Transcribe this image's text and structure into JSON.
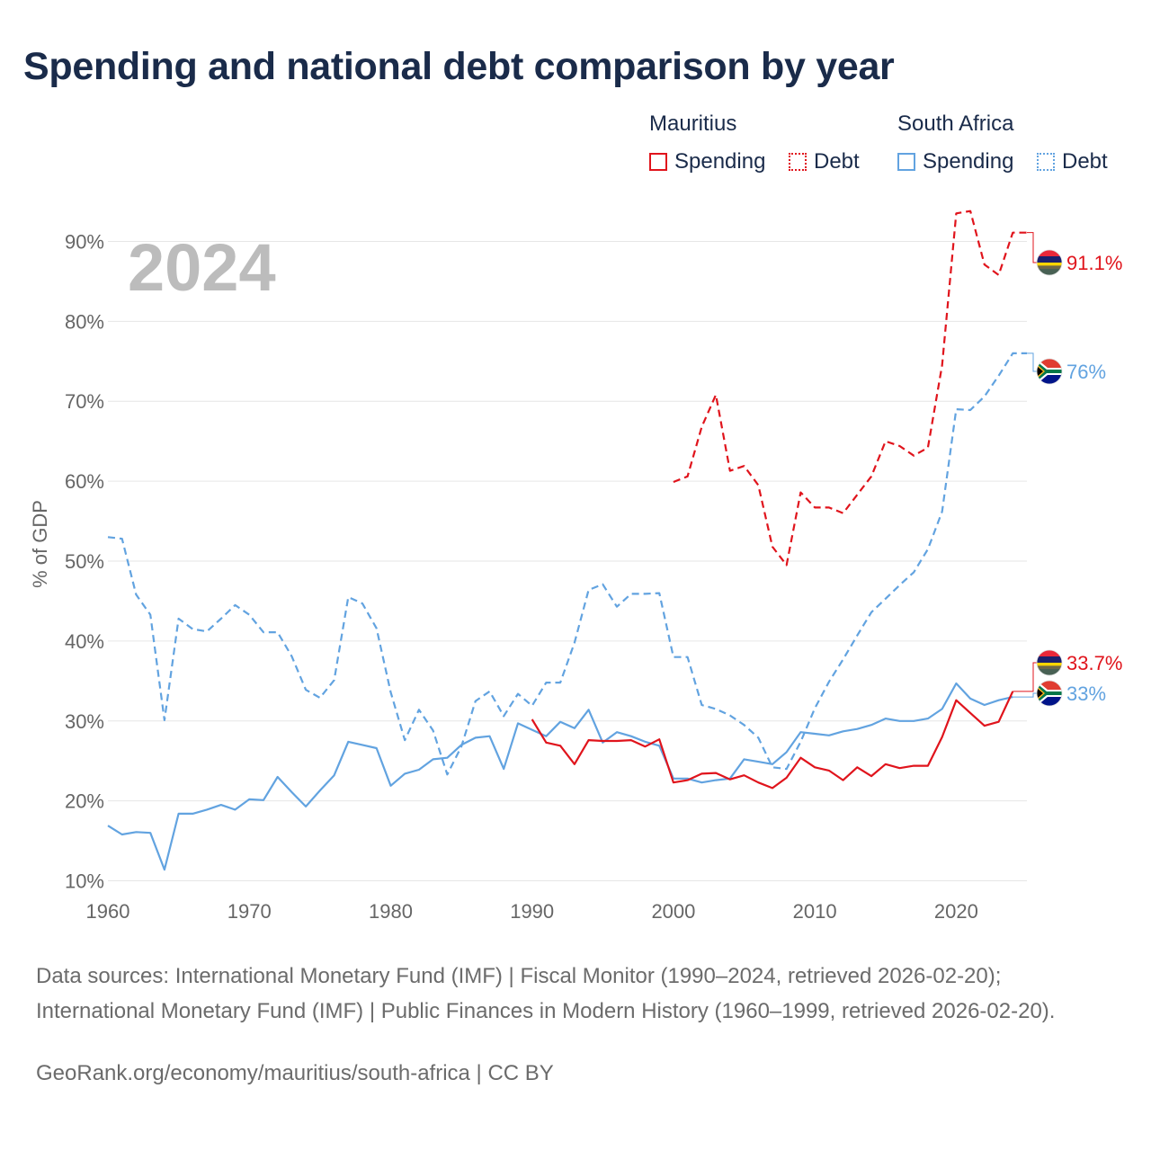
{
  "title": "Spending and national debt comparison by year",
  "legend": {
    "mauritius": {
      "name": "Mauritius",
      "spending": "Spending",
      "debt": "Debt"
    },
    "south_africa": {
      "name": "South Africa",
      "spending": "Spending",
      "debt": "Debt"
    }
  },
  "colors": {
    "mauritius": "#e0141c",
    "south_africa": "#62a3e0",
    "grid": "#e6e6e6",
    "axis_text": "#666666",
    "year_watermark": "#bcbcbc"
  },
  "footer": {
    "sources": "Data sources: International Monetary Fund (IMF) | Fiscal Monitor (1990–2024, retrieved 2026-02-20); International Monetary Fund (IMF) | Public Finances in Modern History (1960–1999, retrieved 2026-02-20).",
    "credit": "GeoRank.org/economy/mauritius/south-africa | CC BY"
  },
  "chart_data": {
    "type": "line",
    "year_label": "2024",
    "ylabel": "% of GDP",
    "xlim": [
      1960,
      2025
    ],
    "ylim": [
      5,
      95
    ],
    "xticks": [
      1960,
      1970,
      1980,
      1990,
      2000,
      2010,
      2020
    ],
    "yticks": [
      10,
      20,
      30,
      40,
      50,
      60,
      70,
      80,
      90
    ],
    "ytick_labels": [
      "10%",
      "20%",
      "30%",
      "40%",
      "50%",
      "60%",
      "70%",
      "80%",
      "90%"
    ],
    "end_labels": [
      {
        "series": "mu_debt",
        "text": "91.1%",
        "flag": "mauritius-flag"
      },
      {
        "series": "sa_debt",
        "text": "76%",
        "flag": "south-africa-flag"
      },
      {
        "series": "mu_spending",
        "text": "33.7%",
        "flag": "mauritius-flag"
      },
      {
        "series": "sa_spending",
        "text": "33%",
        "flag": "south-africa-flag"
      }
    ],
    "series": [
      {
        "key": "sa_debt",
        "country": "South Africa",
        "measure": "Debt",
        "color": "#62a3e0",
        "style": "dashed",
        "points": [
          [
            1960,
            53.0
          ],
          [
            1961,
            52.8
          ],
          [
            1962,
            45.8
          ],
          [
            1963,
            43.3
          ],
          [
            1964,
            30.1
          ],
          [
            1965,
            42.8
          ],
          [
            1966,
            41.5
          ],
          [
            1967,
            41.2
          ],
          [
            1968,
            42.8
          ],
          [
            1969,
            44.5
          ],
          [
            1970,
            43.3
          ],
          [
            1971,
            41.1
          ],
          [
            1972,
            41.1
          ],
          [
            1973,
            38.1
          ],
          [
            1974,
            33.9
          ],
          [
            1975,
            32.9
          ],
          [
            1976,
            35.1
          ],
          [
            1977,
            45.5
          ],
          [
            1978,
            44.7
          ],
          [
            1979,
            41.6
          ],
          [
            1980,
            33.6
          ],
          [
            1981,
            27.6
          ],
          [
            1982,
            31.4
          ],
          [
            1983,
            28.8
          ],
          [
            1984,
            23.3
          ],
          [
            1985,
            26.8
          ],
          [
            1986,
            32.5
          ],
          [
            1987,
            33.7
          ],
          [
            1988,
            30.6
          ],
          [
            1989,
            33.4
          ],
          [
            1990,
            31.9
          ],
          [
            1991,
            34.8
          ],
          [
            1992,
            34.8
          ],
          [
            1993,
            39.8
          ],
          [
            1994,
            46.4
          ],
          [
            1995,
            47.1
          ],
          [
            1996,
            44.3
          ],
          [
            1997,
            45.9
          ],
          [
            1998,
            45.9
          ],
          [
            1999,
            46.0
          ],
          [
            2000,
            38.0
          ],
          [
            2001,
            38.0
          ],
          [
            2002,
            32.0
          ],
          [
            2003,
            31.5
          ],
          [
            2004,
            30.7
          ],
          [
            2005,
            29.5
          ],
          [
            2006,
            27.9
          ],
          [
            2007,
            24.2
          ],
          [
            2008,
            24.0
          ],
          [
            2009,
            27.4
          ],
          [
            2010,
            31.6
          ],
          [
            2011,
            34.9
          ],
          [
            2012,
            37.7
          ],
          [
            2013,
            40.7
          ],
          [
            2014,
            43.6
          ],
          [
            2015,
            45.3
          ],
          [
            2016,
            47.0
          ],
          [
            2017,
            48.6
          ],
          [
            2018,
            51.5
          ],
          [
            2019,
            56.2
          ],
          [
            2020,
            69.0
          ],
          [
            2021,
            68.9
          ],
          [
            2022,
            70.6
          ],
          [
            2023,
            73.2
          ],
          [
            2024,
            76.0
          ],
          [
            2025,
            76.0
          ]
        ]
      },
      {
        "key": "mu_debt",
        "country": "Mauritius",
        "measure": "Debt",
        "color": "#e0141c",
        "style": "dashed",
        "points": [
          [
            2000,
            59.9
          ],
          [
            2001,
            60.6
          ],
          [
            2002,
            66.8
          ],
          [
            2003,
            70.8
          ],
          [
            2004,
            61.3
          ],
          [
            2005,
            61.9
          ],
          [
            2006,
            59.5
          ],
          [
            2007,
            51.8
          ],
          [
            2008,
            49.5
          ],
          [
            2009,
            58.6
          ],
          [
            2010,
            56.7
          ],
          [
            2011,
            56.7
          ],
          [
            2012,
            56.0
          ],
          [
            2013,
            58.3
          ],
          [
            2014,
            60.6
          ],
          [
            2015,
            65.0
          ],
          [
            2016,
            64.4
          ],
          [
            2017,
            63.2
          ],
          [
            2018,
            64.2
          ],
          [
            2019,
            74.5
          ],
          [
            2020,
            93.5
          ],
          [
            2021,
            93.8
          ],
          [
            2022,
            87.1
          ],
          [
            2023,
            85.8
          ],
          [
            2024,
            91.1
          ],
          [
            2025,
            91.1
          ]
        ]
      },
      {
        "key": "sa_spending",
        "country": "South Africa",
        "measure": "Spending",
        "color": "#62a3e0",
        "style": "solid",
        "points": [
          [
            1960,
            16.9
          ],
          [
            1961,
            15.8
          ],
          [
            1962,
            16.1
          ],
          [
            1963,
            16.0
          ],
          [
            1964,
            11.4
          ],
          [
            1965,
            18.4
          ],
          [
            1966,
            18.4
          ],
          [
            1967,
            18.9
          ],
          [
            1968,
            19.5
          ],
          [
            1969,
            18.9
          ],
          [
            1970,
            20.2
          ],
          [
            1971,
            20.1
          ],
          [
            1972,
            23.0
          ],
          [
            1973,
            21.1
          ],
          [
            1974,
            19.3
          ],
          [
            1975,
            21.3
          ],
          [
            1976,
            23.2
          ],
          [
            1977,
            27.4
          ],
          [
            1978,
            27.0
          ],
          [
            1979,
            26.6
          ],
          [
            1980,
            21.9
          ],
          [
            1981,
            23.4
          ],
          [
            1982,
            23.9
          ],
          [
            1983,
            25.2
          ],
          [
            1984,
            25.4
          ],
          [
            1985,
            27.0
          ],
          [
            1986,
            27.9
          ],
          [
            1987,
            28.1
          ],
          [
            1988,
            24.0
          ],
          [
            1989,
            29.7
          ],
          [
            1990,
            28.9
          ],
          [
            1991,
            28.1
          ],
          [
            1992,
            29.9
          ],
          [
            1993,
            29.1
          ],
          [
            1994,
            31.4
          ],
          [
            1995,
            27.3
          ],
          [
            1996,
            28.6
          ],
          [
            1997,
            28.1
          ],
          [
            1998,
            27.4
          ],
          [
            1999,
            26.9
          ],
          [
            2000,
            22.8
          ],
          [
            2001,
            22.8
          ],
          [
            2002,
            22.3
          ],
          [
            2003,
            22.6
          ],
          [
            2004,
            22.8
          ],
          [
            2005,
            25.2
          ],
          [
            2006,
            24.9
          ],
          [
            2007,
            24.6
          ],
          [
            2008,
            26.1
          ],
          [
            2009,
            28.6
          ],
          [
            2010,
            28.4
          ],
          [
            2011,
            28.2
          ],
          [
            2012,
            28.7
          ],
          [
            2013,
            29.0
          ],
          [
            2014,
            29.5
          ],
          [
            2015,
            30.3
          ],
          [
            2016,
            30.0
          ],
          [
            2017,
            30.0
          ],
          [
            2018,
            30.3
          ],
          [
            2019,
            31.5
          ],
          [
            2020,
            34.7
          ],
          [
            2021,
            32.8
          ],
          [
            2022,
            32.0
          ],
          [
            2023,
            32.6
          ],
          [
            2024,
            33.0
          ]
        ]
      },
      {
        "key": "mu_spending",
        "country": "Mauritius",
        "measure": "Spending",
        "color": "#e0141c",
        "style": "solid",
        "points": [
          [
            1990,
            30.2
          ],
          [
            1991,
            27.3
          ],
          [
            1992,
            26.9
          ],
          [
            1993,
            24.6
          ],
          [
            1994,
            27.6
          ],
          [
            1995,
            27.5
          ],
          [
            1996,
            27.5
          ],
          [
            1997,
            27.6
          ],
          [
            1998,
            26.8
          ],
          [
            1999,
            27.7
          ],
          [
            2000,
            22.3
          ],
          [
            2001,
            22.6
          ],
          [
            2002,
            23.4
          ],
          [
            2003,
            23.5
          ],
          [
            2004,
            22.7
          ],
          [
            2005,
            23.2
          ],
          [
            2006,
            22.3
          ],
          [
            2007,
            21.6
          ],
          [
            2008,
            22.9
          ],
          [
            2009,
            25.4
          ],
          [
            2010,
            24.2
          ],
          [
            2011,
            23.8
          ],
          [
            2012,
            22.6
          ],
          [
            2013,
            24.2
          ],
          [
            2014,
            23.1
          ],
          [
            2015,
            24.6
          ],
          [
            2016,
            24.1
          ],
          [
            2017,
            24.4
          ],
          [
            2018,
            24.4
          ],
          [
            2019,
            28.0
          ],
          [
            2020,
            32.6
          ],
          [
            2021,
            31.0
          ],
          [
            2022,
            29.4
          ],
          [
            2023,
            29.9
          ],
          [
            2024,
            33.7
          ]
        ]
      }
    ]
  }
}
